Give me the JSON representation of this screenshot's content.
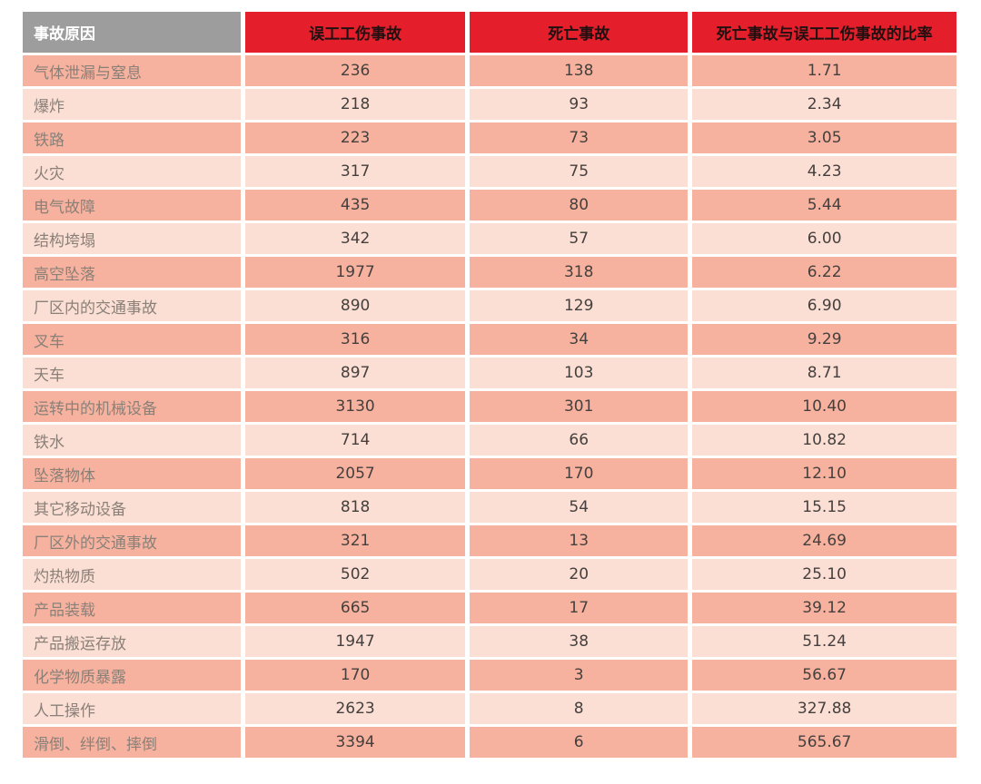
{
  "colors": {
    "page_bg": "#ffffff",
    "header_gray_bg": "#9d9d9d",
    "header_gray_text": "#ffffff",
    "header_red_bg": "#e41f2b",
    "header_red_text": "#201011",
    "row_dark_bg": "#f6b29f",
    "row_light_bg": "#fbded4",
    "label_text": "#8a8078",
    "value_text": "#45403d"
  },
  "table": {
    "columns": [
      "事故原因",
      "误工工伤事故",
      "死亡事故",
      "死亡事故与误工工伤事故的比率"
    ],
    "rows": [
      [
        "气体泄漏与窒息",
        "236",
        "138",
        "1.71"
      ],
      [
        "爆炸",
        "218",
        "93",
        "2.34"
      ],
      [
        "铁路",
        "223",
        "73",
        "3.05"
      ],
      [
        "火灾",
        "317",
        "75",
        "4.23"
      ],
      [
        "电气故障",
        "435",
        "80",
        "5.44"
      ],
      [
        "结构垮塌",
        "342",
        "57",
        "6.00"
      ],
      [
        "高空坠落",
        "1977",
        "318",
        "6.22"
      ],
      [
        "厂区内的交通事故",
        "890",
        "129",
        "6.90"
      ],
      [
        "叉车",
        "316",
        "34",
        "9.29"
      ],
      [
        "天车",
        "897",
        "103",
        "8.71"
      ],
      [
        "运转中的机械设备",
        "3130",
        "301",
        "10.40"
      ],
      [
        "铁水",
        "714",
        "66",
        "10.82"
      ],
      [
        "坠落物体",
        "2057",
        "170",
        "12.10"
      ],
      [
        "其它移动设备",
        "818",
        "54",
        "15.15"
      ],
      [
        "厂区外的交通事故",
        "321",
        "13",
        "24.69"
      ],
      [
        "灼热物质",
        "502",
        "20",
        "25.10"
      ],
      [
        "产品装载",
        "665",
        "17",
        "39.12"
      ],
      [
        "产品搬运存放",
        "1947",
        "38",
        "51.24"
      ],
      [
        "化学物质暴露",
        "170",
        "3",
        "56.67"
      ],
      [
        "人工操作",
        "2623",
        "8",
        "327.88"
      ],
      [
        "滑倒、绊倒、摔倒",
        "3394",
        "6",
        "565.67"
      ]
    ]
  },
  "chart_data": {
    "type": "table",
    "title": "",
    "columns": [
      "事故原因",
      "误工工伤事故",
      "死亡事故",
      "死亡事故与误工工伤事故的比率"
    ],
    "rows": [
      [
        "气体泄漏与窒息",
        236,
        138,
        1.71
      ],
      [
        "爆炸",
        218,
        93,
        2.34
      ],
      [
        "铁路",
        223,
        73,
        3.05
      ],
      [
        "火灾",
        317,
        75,
        4.23
      ],
      [
        "电气故障",
        435,
        80,
        5.44
      ],
      [
        "结构垮塌",
        342,
        57,
        6.0
      ],
      [
        "高空坠落",
        1977,
        318,
        6.22
      ],
      [
        "厂区内的交通事故",
        890,
        129,
        6.9
      ],
      [
        "叉车",
        316,
        34,
        9.29
      ],
      [
        "天车",
        897,
        103,
        8.71
      ],
      [
        "运转中的机械设备",
        3130,
        301,
        10.4
      ],
      [
        "铁水",
        714,
        66,
        10.82
      ],
      [
        "坠落物体",
        2057,
        170,
        12.1
      ],
      [
        "其它移动设备",
        818,
        54,
        15.15
      ],
      [
        "厂区外的交通事故",
        321,
        13,
        24.69
      ],
      [
        "灼热物质",
        502,
        20,
        25.1
      ],
      [
        "产品装载",
        665,
        17,
        39.12
      ],
      [
        "产品搬运存放",
        1947,
        38,
        51.24
      ],
      [
        "化学物质暴露",
        170,
        3,
        56.67
      ],
      [
        "人工操作",
        2623,
        8,
        327.88
      ],
      [
        "滑倒、绊倒、摔倒",
        3394,
        6,
        565.67
      ]
    ]
  }
}
